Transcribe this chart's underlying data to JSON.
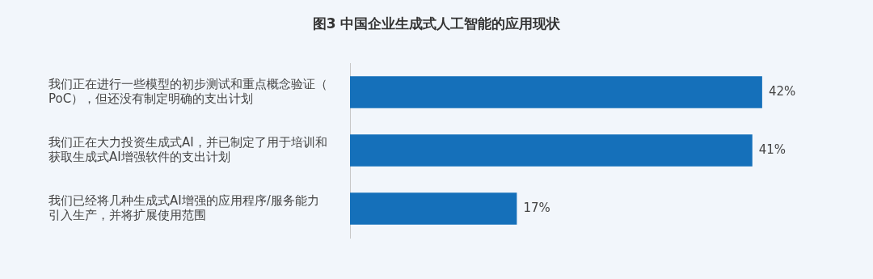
{
  "chart_data": {
    "type": "bar",
    "orientation": "horizontal",
    "title": "图3 中国企业生成式人工智能的应用现状",
    "categories": [
      "我们正在进行一些模型的初步测试和重点概念验证（PoC），但还没有制定明确的支出计划",
      "我们正在大力投资生成式AI，并已制定了用于培训和获取生成式AI增强软件的支出计划",
      "我们已经将几种生成式AI增强的应用程序/服务能力引入生产，并将扩展使用范围"
    ],
    "values": [
      42,
      41,
      17
    ],
    "value_labels": [
      "42%",
      "41%",
      "17%"
    ],
    "color": "#1570ba",
    "tick_labels": "y",
    "grid": false,
    "legend": false
  }
}
